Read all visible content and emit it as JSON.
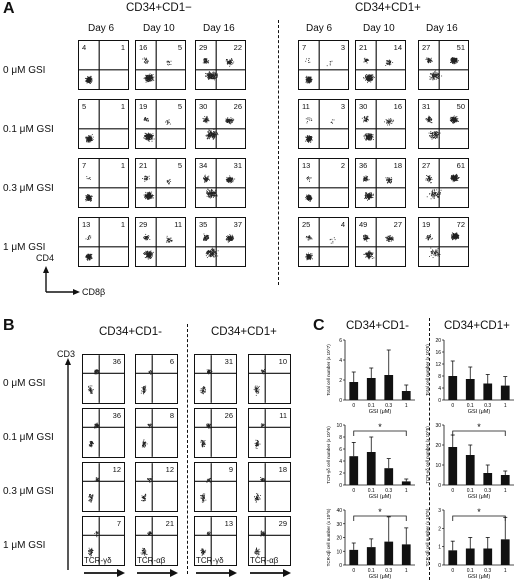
{
  "panels": {
    "A": {
      "letter": "A",
      "groups": [
        "CD34+CD1−",
        "CD34+CD1+"
      ],
      "days": [
        "Day 6",
        "Day 10",
        "Day 16"
      ],
      "rows": [
        "0 μM GSI",
        "0.1 μM GSI",
        "0.3 μM GSI",
        "1 μM GSI"
      ],
      "y_axis": "CD4",
      "x_axis": "CD8β",
      "quadrants": [
        [
          [
            "4",
            "1"
          ],
          [
            "16",
            "5"
          ],
          [
            "29",
            "22"
          ],
          [
            "7",
            "3"
          ],
          [
            "21",
            "14"
          ],
          [
            "27",
            "51"
          ]
        ],
        [
          [
            "5",
            "1"
          ],
          [
            "19",
            "5"
          ],
          [
            "30",
            "26"
          ],
          [
            "11",
            "3"
          ],
          [
            "30",
            "16"
          ],
          [
            "31",
            "50"
          ]
        ],
        [
          [
            "7",
            "1"
          ],
          [
            "21",
            "5"
          ],
          [
            "34",
            "31"
          ],
          [
            "13",
            "2"
          ],
          [
            "36",
            "18"
          ],
          [
            "27",
            "61"
          ]
        ],
        [
          [
            "13",
            "1"
          ],
          [
            "29",
            "11"
          ],
          [
            "35",
            "37"
          ],
          [
            "25",
            "4"
          ],
          [
            "49",
            "27"
          ],
          [
            "19",
            "72"
          ]
        ]
      ]
    },
    "B": {
      "letter": "B",
      "groups": [
        "CD34+CD1-",
        "CD34+CD1+"
      ],
      "rows": [
        "0 μM GSI",
        "0.1 μM GSI",
        "0.3 μM GSI",
        "1 μM GSI"
      ],
      "y_axis": "CD3",
      "x_labels": [
        "TCR-γδ",
        "TCR-αβ",
        "TCR-γδ",
        "TCR-αβ"
      ],
      "values": [
        [
          "36",
          "6",
          "31",
          "10"
        ],
        [
          "36",
          "8",
          "26",
          "11"
        ],
        [
          "12",
          "12",
          "9",
          "18"
        ],
        [
          "7",
          "21",
          "13",
          "29"
        ]
      ]
    },
    "C": {
      "letter": "C",
      "groups": [
        "CD34+CD1-",
        "CD34+CD1+"
      ],
      "xlabel": "GSI (μM)",
      "ticks": [
        "0",
        "0.1",
        "0.3",
        "1"
      ],
      "star": "*"
    }
  },
  "chart_data": [
    {
      "type": "bar",
      "group": "CD34+CD1-",
      "ylabel": "Total cell number (x 10^7)",
      "categories": [
        "0",
        "0.1",
        "0.3",
        "1"
      ],
      "values": [
        1.8,
        2.2,
        2.5,
        0.9
      ],
      "errors": [
        1.0,
        1.0,
        2.5,
        0.6
      ],
      "ylim": [
        0,
        6
      ],
      "yticks": [
        "0",
        "2",
        "4",
        "6"
      ]
    },
    {
      "type": "bar",
      "group": "CD34+CD1-",
      "ylabel": "TCR-γδ cell number (x 10^5)",
      "categories": [
        "0",
        "0.1",
        "0.3",
        "1"
      ],
      "values": [
        4.8,
        5.5,
        2.8,
        0.6
      ],
      "errors": [
        2.3,
        2.5,
        1.6,
        0.4
      ],
      "ylim": [
        0,
        10
      ],
      "yticks": [
        "0",
        "2",
        "4",
        "6",
        "8",
        "10"
      ]
    },
    {
      "type": "bar",
      "group": "CD34+CD1-",
      "ylabel": "TCR-αβ cell number (x 10^5)",
      "categories": [
        "0",
        "0.1",
        "0.3",
        "1"
      ],
      "values": [
        11,
        13,
        17,
        15
      ],
      "errors": [
        5,
        6,
        18,
        12
      ],
      "ylim": [
        0,
        40
      ],
      "yticks": [
        "0",
        "10",
        "20",
        "30",
        "40"
      ]
    },
    {
      "type": "bar",
      "group": "CD34+CD1+",
      "ylabel": "Total cell number (x 10^5)",
      "categories": [
        "0",
        "0.1",
        "0.3",
        "1"
      ],
      "values": [
        8,
        7,
        5.5,
        4.8
      ],
      "errors": [
        5,
        4,
        3,
        3
      ],
      "ylim": [
        0,
        20
      ],
      "yticks": [
        "0",
        "4",
        "8",
        "12",
        "16",
        "20"
      ]
    },
    {
      "type": "bar",
      "group": "CD34+CD1+",
      "ylabel": "TCR-γδ cell number (x 10^5)",
      "categories": [
        "0",
        "0.1",
        "0.3",
        "1"
      ],
      "values": [
        19,
        15,
        6,
        5
      ],
      "errors": [
        6,
        5,
        4,
        2
      ],
      "ylim": [
        0,
        30
      ],
      "yticks": [
        "0",
        "10",
        "20",
        "30"
      ]
    },
    {
      "type": "bar",
      "group": "CD34+CD1+",
      "ylabel": "TCR-αβ cell number (x 10^5)",
      "categories": [
        "0",
        "0.1",
        "0.3",
        "1"
      ],
      "values": [
        0.8,
        0.9,
        0.9,
        1.4
      ],
      "errors": [
        0.5,
        0.6,
        0.6,
        1.2
      ],
      "ylim": [
        0,
        3
      ],
      "yticks": [
        "0",
        "1",
        "2",
        "3"
      ]
    }
  ]
}
